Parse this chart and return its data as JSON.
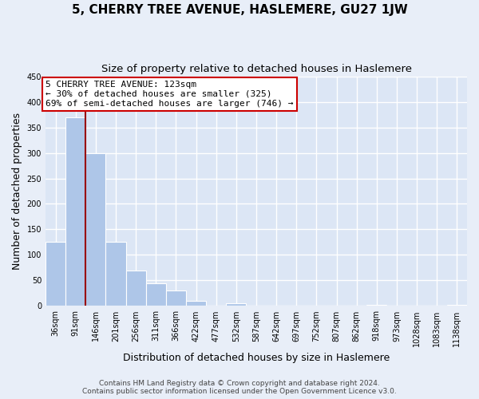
{
  "title": "5, CHERRY TREE AVENUE, HASLEMERE, GU27 1JW",
  "subtitle": "Size of property relative to detached houses in Haslemere",
  "xlabel": "Distribution of detached houses by size in Haslemere",
  "ylabel": "Number of detached properties",
  "categories": [
    "36sqm",
    "91sqm",
    "146sqm",
    "201sqm",
    "256sqm",
    "311sqm",
    "366sqm",
    "422sqm",
    "477sqm",
    "532sqm",
    "587sqm",
    "642sqm",
    "697sqm",
    "752sqm",
    "807sqm",
    "862sqm",
    "918sqm",
    "973sqm",
    "1028sqm",
    "1083sqm",
    "1138sqm"
  ],
  "values": [
    125,
    370,
    300,
    125,
    70,
    45,
    30,
    10,
    0,
    5,
    0,
    0,
    0,
    0,
    0,
    0,
    2,
    0,
    0,
    0,
    2
  ],
  "bar_color": "#aec6e8",
  "bar_edge_color": "#aec6e8",
  "property_line_color": "#990000",
  "annotation_text": "5 CHERRY TREE AVENUE: 123sqm\n← 30% of detached houses are smaller (325)\n69% of semi-detached houses are larger (746) →",
  "annotation_box_color": "white",
  "annotation_box_edge_color": "#cc0000",
  "ylim": [
    0,
    450
  ],
  "yticks": [
    0,
    50,
    100,
    150,
    200,
    250,
    300,
    350,
    400,
    450
  ],
  "footer_line1": "Contains HM Land Registry data © Crown copyright and database right 2024.",
  "footer_line2": "Contains public sector information licensed under the Open Government Licence v3.0.",
  "bg_color": "#e8eef8",
  "plot_bg_color": "#dce6f5",
  "grid_color": "white",
  "title_fontsize": 11,
  "subtitle_fontsize": 9.5,
  "axis_label_fontsize": 9,
  "tick_fontsize": 7,
  "annotation_fontsize": 8,
  "footer_fontsize": 6.5
}
